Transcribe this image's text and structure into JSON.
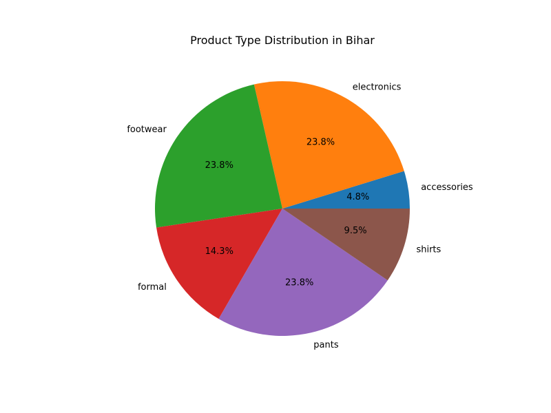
{
  "chart_data": {
    "type": "pie",
    "title": "Product Type Distribution in Bihar",
    "categories": [
      "accessories",
      "electronics",
      "footwear",
      "formal",
      "pants",
      "shirts"
    ],
    "values": [
      1,
      5,
      5,
      3,
      5,
      2
    ],
    "percent_labels": [
      "4.8%",
      "23.8%",
      "23.8%",
      "14.3%",
      "23.8%",
      "9.5%"
    ],
    "colors": [
      "#1f77b4",
      "#ff7f0e",
      "#2ca02c",
      "#d62728",
      "#9467bd",
      "#8c564b"
    ],
    "start_angle_deg": 0,
    "direction": "counterclockwise"
  }
}
